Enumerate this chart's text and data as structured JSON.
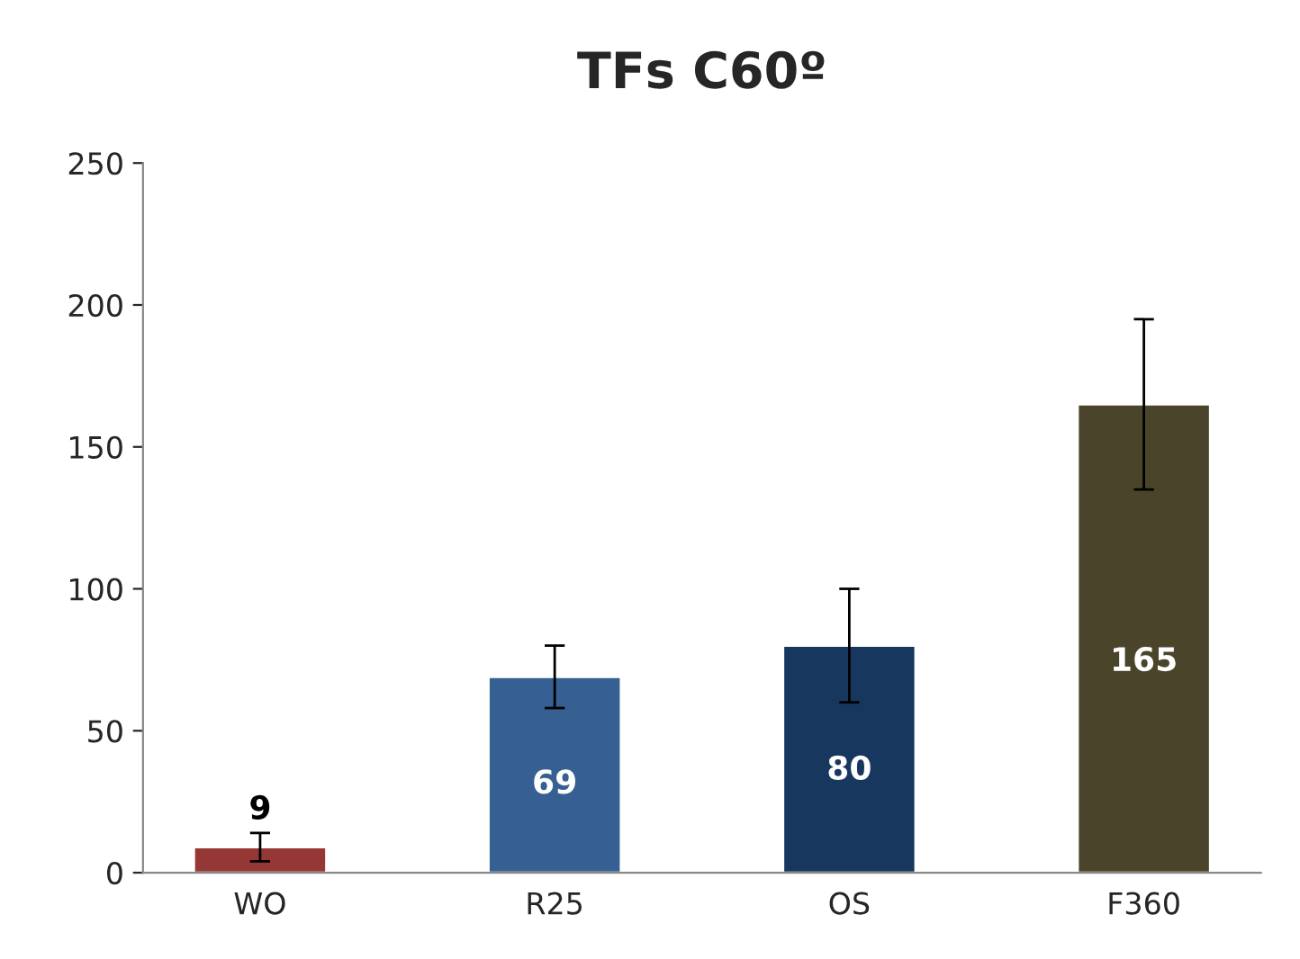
{
  "chart_data": {
    "type": "bar",
    "title": "TFs C60º",
    "categories": [
      "WO",
      "R25",
      "OS",
      "F360"
    ],
    "values": [
      9,
      69,
      80,
      165
    ],
    "colors": [
      "#953735",
      "#376092",
      "#17375e",
      "#4a452a"
    ],
    "errors": [
      5,
      11,
      20,
      30
    ],
    "ylim": [
      0,
      250
    ],
    "yticks": [
      0,
      50,
      100,
      150,
      200,
      250
    ],
    "grid": false,
    "data_labels": true
  }
}
